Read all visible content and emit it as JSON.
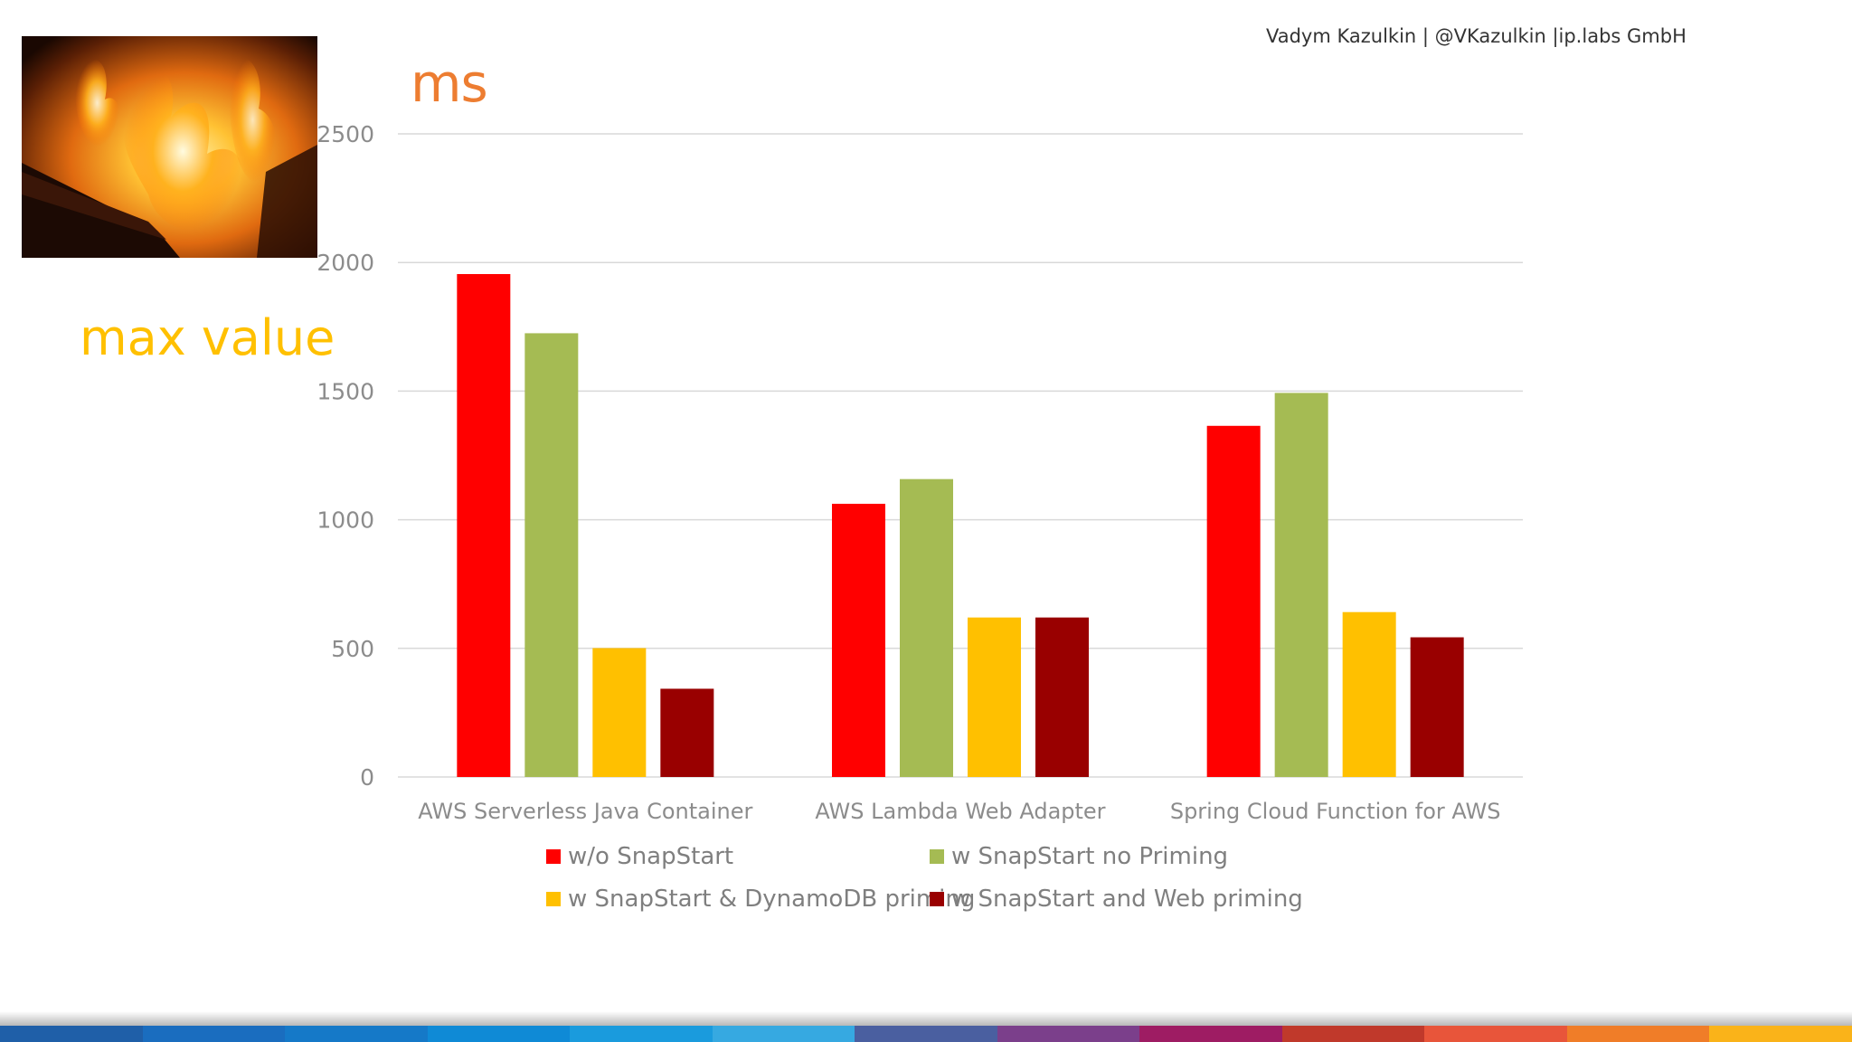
{
  "header": {
    "author_line": "Vadym Kazulkin | @VKazulkin |ip.labs GmbH"
  },
  "slide": {
    "unit_label": "ms",
    "metric_label": "max value",
    "image_icon": "fire-photo"
  },
  "colors": {
    "unit": "#ED7D31",
    "metric": "#FFC000",
    "grid": "#D9D9D9",
    "tick_text": "#8C8C8C",
    "footer": [
      "#1F5FA8",
      "#1A6DBF",
      "#1579C8",
      "#0F8AD6",
      "#1A9BDD",
      "#36A9E1",
      "#4A5FA0",
      "#7B3F8B",
      "#9E1C63",
      "#C0392B",
      "#E8553A",
      "#F07D28",
      "#FAB319"
    ]
  },
  "chart_data": {
    "type": "bar",
    "title": "",
    "xlabel": "",
    "ylabel": "ms",
    "ylim": [
      0,
      2500
    ],
    "yticks": [
      0,
      500,
      1000,
      1500,
      2000,
      2500
    ],
    "grid": true,
    "legend_position": "bottom",
    "categories": [
      "AWS Serverless Java Container",
      "AWS Lambda Web Adapter",
      "Spring Cloud Function for AWS"
    ],
    "series": [
      {
        "name": "w/o SnapStart",
        "color": "#FF0000",
        "values": [
          1955,
          1062,
          1365
        ]
      },
      {
        "name": "w SnapStart no Priming",
        "color": "#A5BB53",
        "values": [
          1725,
          1158,
          1493
        ]
      },
      {
        "name": "w SnapStart & DynamoDB priming",
        "color": "#FFC000",
        "values": [
          501,
          620,
          641
        ]
      },
      {
        "name": "w SnapStart and Web priming",
        "color": "#990000",
        "values": [
          343,
          620,
          543
        ]
      }
    ]
  }
}
